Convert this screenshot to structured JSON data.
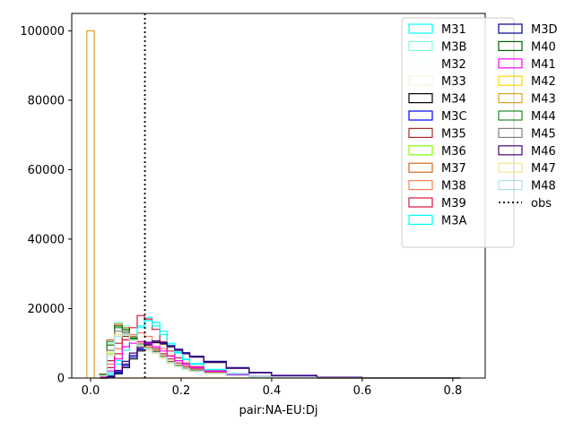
{
  "chart_data": {
    "type": "histogram",
    "title": "",
    "xlabel": "pair:NA-EU:Dj",
    "ylabel": "",
    "xlim": [
      -0.0415,
      0.8715
    ],
    "ylim": [
      0,
      105000
    ],
    "xticks": [
      0.0,
      0.2,
      0.4,
      0.6,
      0.8
    ],
    "xtick_labels": [
      "0.0",
      "0.2",
      "0.4",
      "0.6",
      "0.8"
    ],
    "yticks": [
      0,
      20000,
      40000,
      60000,
      80000,
      100000
    ],
    "ytick_labels": [
      "0",
      "20000",
      "40000",
      "60000",
      "80000",
      "100000"
    ],
    "bin_width": 0.0166,
    "obs": {
      "label": "obs",
      "x": 0.12,
      "color": "#000000"
    },
    "legend": {
      "placement": "upper-right",
      "columns": 2
    },
    "series": [
      {
        "name": "M31",
        "color": "#00ffff",
        "bins": [
          0.02,
          0.036,
          0.053,
          0.07,
          0.086,
          0.103,
          0.119,
          0.136,
          0.153,
          0.169,
          0.186,
          0.203,
          0.219,
          0.25,
          0.3,
          0.35,
          0.4,
          0.5,
          0.6,
          0.8
        ],
        "counts": [
          0,
          1500,
          5000,
          9000,
          12000,
          15000,
          17500,
          16000,
          13500,
          10000,
          7500,
          5500,
          4200,
          2500,
          1200,
          500,
          150,
          20,
          0,
          0
        ]
      },
      {
        "name": "M3B",
        "color": "#7fffd4",
        "bins": [
          0.02,
          0.036,
          0.053,
          0.07,
          0.086,
          0.103,
          0.119,
          0.136,
          0.153,
          0.169,
          0.186,
          0.203,
          0.219,
          0.25,
          0.3,
          0.35,
          0.4,
          0.5,
          0.6,
          0.8
        ],
        "counts": [
          1000,
          10000,
          16000,
          15000,
          12000,
          9500,
          8500,
          7500,
          6000,
          4500,
          3500,
          2700,
          2200,
          1500,
          800,
          350,
          100,
          10,
          0,
          0
        ]
      },
      {
        "name": "M32",
        "color": "#f0ffff",
        "bins": [
          0.02,
          0.036,
          0.053,
          0.07,
          0.086,
          0.103,
          0.119,
          0.136,
          0.153,
          0.169,
          0.186,
          0.203,
          0.219,
          0.25,
          0.3,
          0.35,
          0.4,
          0.5,
          0.6,
          0.8
        ],
        "counts": [
          800,
          9000,
          14000,
          13500,
          11000,
          9000,
          8000,
          7000,
          5600,
          4200,
          3300,
          2500,
          2000,
          1400,
          700,
          300,
          90,
          10,
          0,
          0
        ]
      },
      {
        "name": "M33",
        "color": "#f5f5dc",
        "bins": [
          0.02,
          0.036,
          0.053,
          0.07,
          0.086,
          0.103,
          0.119,
          0.136,
          0.153,
          0.169,
          0.186,
          0.203,
          0.219,
          0.25,
          0.3,
          0.35,
          0.4,
          0.5,
          0.6,
          0.8
        ],
        "counts": [
          700,
          8500,
          13000,
          12500,
          10500,
          8800,
          7800,
          6800,
          5400,
          4100,
          3200,
          2400,
          1900,
          1300,
          650,
          280,
          80,
          10,
          0,
          0
        ]
      },
      {
        "name": "M34",
        "color": "#000000",
        "bins": [
          0.02,
          0.036,
          0.053,
          0.07,
          0.086,
          0.103,
          0.119,
          0.136,
          0.153,
          0.169,
          0.186,
          0.203,
          0.219,
          0.25,
          0.3,
          0.35,
          0.4,
          0.5,
          0.6,
          0.8
        ],
        "counts": [
          0,
          200,
          1200,
          3000,
          5500,
          7800,
          9500,
          10200,
          9800,
          9000,
          8000,
          7000,
          6000,
          4500,
          2800,
          1500,
          700,
          200,
          40,
          5
        ]
      },
      {
        "name": "M3C",
        "color": "#0000ff",
        "bins": [
          0.02,
          0.036,
          0.053,
          0.07,
          0.086,
          0.103,
          0.119,
          0.136,
          0.153,
          0.169,
          0.186,
          0.203,
          0.219,
          0.25,
          0.3,
          0.35,
          0.4,
          0.5,
          0.6,
          0.8
        ],
        "counts": [
          0,
          300,
          1500,
          3500,
          6000,
          8200,
          9800,
          10500,
          10000,
          9200,
          8200,
          7200,
          6200,
          4700,
          2900,
          1600,
          750,
          220,
          45,
          5
        ]
      },
      {
        "name": "M35",
        "color": "#a52a2a",
        "bins": [
          0.02,
          0.036,
          0.053,
          0.07,
          0.086,
          0.103,
          0.119,
          0.136,
          0.153,
          0.169,
          0.186,
          0.203,
          0.219,
          0.25,
          0.3,
          0.35,
          0.4,
          0.5,
          0.6,
          0.8
        ],
        "counts": [
          500,
          5000,
          10000,
          12000,
          11500,
          10500,
          9500,
          8500,
          7000,
          5500,
          4300,
          3300,
          2600,
          1700,
          850,
          380,
          110,
          15,
          0,
          0
        ]
      },
      {
        "name": "M36",
        "color": "#7fff00",
        "bins": [
          0.02,
          0.036,
          0.053,
          0.07,
          0.086,
          0.103,
          0.119,
          0.136,
          0.153,
          0.169,
          0.186,
          0.203,
          0.219,
          0.25,
          0.3,
          0.35,
          0.4,
          0.5,
          0.6,
          0.8
        ],
        "counts": [
          600,
          7000,
          12000,
          12500,
          11000,
          9500,
          8500,
          7500,
          6100,
          4600,
          3600,
          2700,
          2100,
          1400,
          700,
          300,
          90,
          10,
          0,
          0
        ]
      },
      {
        "name": "M37",
        "color": "#d2691e",
        "bins": [
          0.02,
          0.036,
          0.053,
          0.07,
          0.086,
          0.103,
          0.119,
          0.136,
          0.153,
          0.169,
          0.186,
          0.203,
          0.219,
          0.25,
          0.3,
          0.35,
          0.4,
          0.5,
          0.6,
          0.8
        ],
        "counts": [
          1200,
          11000,
          15500,
          14500,
          12000,
          10000,
          9000,
          8000,
          6400,
          4800,
          3700,
          2800,
          2200,
          1500,
          750,
          320,
          95,
          10,
          0,
          0
        ]
      },
      {
        "name": "M38",
        "color": "#ff7f50",
        "bins": [
          0.02,
          0.036,
          0.053,
          0.07,
          0.086,
          0.103,
          0.119,
          0.136,
          0.153,
          0.169,
          0.186,
          0.203,
          0.219,
          0.25,
          0.3,
          0.35,
          0.4,
          0.5,
          0.6,
          0.8
        ],
        "counts": [
          400,
          4000,
          8500,
          11000,
          12500,
          13000,
          12000,
          10500,
          8500,
          6500,
          5000,
          3800,
          3000,
          1900,
          950,
          420,
          120,
          15,
          0,
          0
        ]
      },
      {
        "name": "M39",
        "color": "#dc143c",
        "bins": [
          0.02,
          0.036,
          0.053,
          0.07,
          0.086,
          0.103,
          0.119,
          0.136,
          0.153,
          0.169,
          0.186,
          0.203,
          0.219,
          0.25,
          0.3,
          0.35,
          0.4,
          0.5,
          0.6,
          0.8
        ],
        "counts": [
          300,
          3000,
          7000,
          11000,
          14500,
          18000,
          17000,
          14000,
          10500,
          7800,
          5800,
          4300,
          3300,
          2100,
          1000,
          450,
          130,
          15,
          0,
          0
        ]
      },
      {
        "name": "M3A",
        "color": "#00ffff",
        "bins": [
          0.02,
          0.036,
          0.053,
          0.07,
          0.086,
          0.103,
          0.119,
          0.136,
          0.153,
          0.169,
          0.186,
          0.203,
          0.219,
          0.25,
          0.3,
          0.35,
          0.4,
          0.5,
          0.6,
          0.8
        ],
        "counts": [
          0,
          1000,
          4000,
          8000,
          11500,
          14500,
          16500,
          15000,
          12500,
          9500,
          7200,
          5300,
          4000,
          2400,
          1150,
          480,
          140,
          20,
          0,
          0
        ]
      },
      {
        "name": "M3D",
        "color": "#00008b",
        "bins": [
          0.02,
          0.036,
          0.053,
          0.07,
          0.086,
          0.103,
          0.119,
          0.136,
          0.153,
          0.169,
          0.186,
          0.203,
          0.219,
          0.25,
          0.3,
          0.35,
          0.4,
          0.5,
          0.6,
          0.8
        ],
        "counts": [
          0,
          400,
          1800,
          4000,
          6500,
          8500,
          10000,
          10700,
          10200,
          9300,
          8300,
          7300,
          6300,
          4800,
          3000,
          1650,
          780,
          230,
          50,
          5
        ]
      },
      {
        "name": "M40",
        "color": "#006400",
        "bins": [
          0.02,
          0.036,
          0.053,
          0.07,
          0.086,
          0.103,
          0.119,
          0.136,
          0.153,
          0.169,
          0.186,
          0.203,
          0.219,
          0.25,
          0.3,
          0.35,
          0.4,
          0.5,
          0.6,
          0.8
        ],
        "counts": [
          900,
          9500,
          15000,
          14000,
          11500,
          9500,
          8500,
          7600,
          6100,
          4600,
          3500,
          2700,
          2100,
          1400,
          720,
          310,
          90,
          10,
          0,
          0
        ]
      },
      {
        "name": "M41",
        "color": "#ff00ff",
        "bins": [
          0.02,
          0.036,
          0.053,
          0.07,
          0.086,
          0.103,
          0.119,
          0.136,
          0.153,
          0.169,
          0.186,
          0.203,
          0.219,
          0.25,
          0.3,
          0.35,
          0.4,
          0.5,
          0.6,
          0.8
        ],
        "counts": [
          200,
          2000,
          5500,
          9000,
          10000,
          10500,
          10000,
          9000,
          7800,
          6300,
          5000,
          3900,
          3000,
          1950,
          1000,
          440,
          130,
          15,
          0,
          0
        ]
      },
      {
        "name": "M42",
        "color": "#ffd700",
        "bins": [
          0.02,
          0.036,
          0.053,
          0.07,
          0.086,
          0.103,
          0.119,
          0.136,
          0.153,
          0.169,
          0.186,
          0.203,
          0.219,
          0.25,
          0.3,
          0.35,
          0.4,
          0.5,
          0.6,
          0.8
        ],
        "counts": [
          0,
          0,
          0,
          0,
          0,
          0,
          0,
          0,
          0,
          0,
          0,
          0,
          0,
          0,
          0,
          0,
          0,
          0,
          0,
          0
        ]
      },
      {
        "name": "M43",
        "color": "#daa520",
        "bins": [
          -0.0083,
          0.0083
        ],
        "counts": [
          100000,
          0
        ]
      },
      {
        "name": "M44",
        "color": "#228b22",
        "bins": [
          0.02,
          0.036,
          0.053,
          0.07,
          0.086,
          0.103,
          0.119,
          0.136,
          0.153,
          0.169,
          0.186,
          0.203,
          0.219,
          0.25,
          0.3,
          0.35,
          0.4,
          0.5,
          0.6,
          0.8
        ],
        "counts": [
          1100,
          10500,
          14500,
          13500,
          11200,
          9300,
          8300,
          7400,
          6000,
          4500,
          3400,
          2600,
          2050,
          1380,
          700,
          300,
          88,
          10,
          0,
          0
        ]
      },
      {
        "name": "M45",
        "color": "#808080",
        "bins": [
          0.02,
          0.036,
          0.053,
          0.07,
          0.086,
          0.103,
          0.119,
          0.136,
          0.153,
          0.169,
          0.186,
          0.203,
          0.219,
          0.25,
          0.3,
          0.35,
          0.4,
          0.5,
          0.6,
          0.8
        ],
        "counts": [
          800,
          8000,
          13500,
          13000,
          11000,
          9200,
          8200,
          7300,
          5900,
          4400,
          3400,
          2600,
          2050,
          1380,
          700,
          300,
          88,
          10,
          0,
          0
        ]
      },
      {
        "name": "M46",
        "color": "#4b0082",
        "bins": [
          0.02,
          0.036,
          0.053,
          0.07,
          0.086,
          0.103,
          0.119,
          0.136,
          0.153,
          0.169,
          0.186,
          0.203,
          0.219,
          0.25,
          0.3,
          0.35,
          0.4,
          0.5,
          0.6,
          0.8
        ],
        "counts": [
          0,
          600,
          2200,
          4800,
          7200,
          9000,
          10300,
          10600,
          10000,
          9100,
          8100,
          7100,
          6100,
          4600,
          2850,
          1550,
          730,
          210,
          42,
          5
        ]
      },
      {
        "name": "M47",
        "color": "#f0e68c",
        "bins": [
          0.02,
          0.036,
          0.053,
          0.07,
          0.086,
          0.103,
          0.119,
          0.136,
          0.153,
          0.169,
          0.186,
          0.203,
          0.219,
          0.25,
          0.3,
          0.35,
          0.4,
          0.5,
          0.6,
          0.8
        ],
        "counts": [
          700,
          7500,
          12500,
          12500,
          10800,
          9200,
          8200,
          7200,
          5800,
          4300,
          3300,
          2500,
          1950,
          1320,
          670,
          290,
          85,
          10,
          0,
          0
        ]
      },
      {
        "name": "M48",
        "color": "#b0e0e6",
        "bins": [
          0.02,
          0.036,
          0.053,
          0.07,
          0.086,
          0.103,
          0.119,
          0.136,
          0.153,
          0.169,
          0.186,
          0.203,
          0.219,
          0.25,
          0.3,
          0.35,
          0.4,
          0.5,
          0.6,
          0.8
        ],
        "counts": [
          600,
          6500,
          12000,
          12500,
          11000,
          9400,
          8400,
          7400,
          6000,
          4500,
          3400,
          2600,
          2050,
          1380,
          700,
          300,
          88,
          10,
          0,
          0
        ]
      }
    ]
  }
}
